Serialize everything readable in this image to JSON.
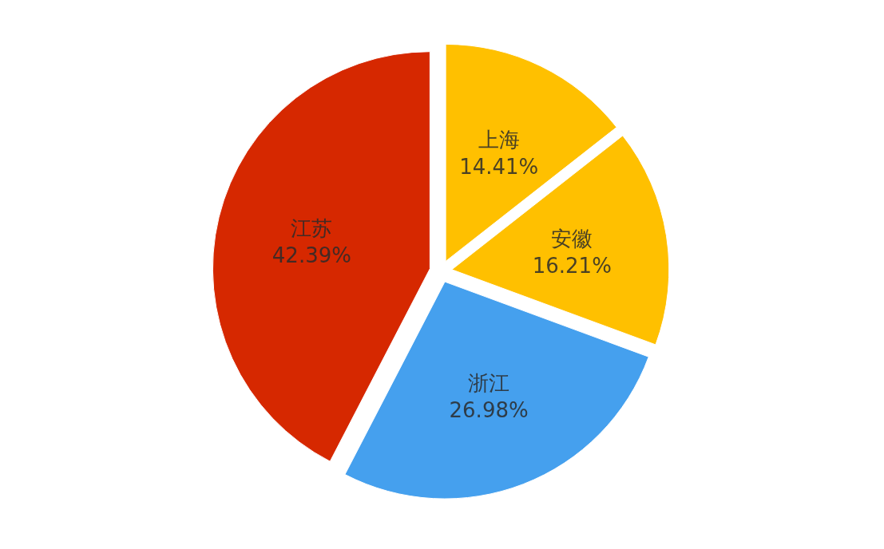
{
  "chart_data": {
    "type": "pie",
    "categories": [
      "上海",
      "安徽",
      "浙江",
      "江苏"
    ],
    "values": [
      14.41,
      16.21,
      26.98,
      42.39
    ],
    "colors": [
      "#ffc000",
      "#ffc000",
      "#45a0ee",
      "#d62800"
    ],
    "value_labels": [
      "14.41%",
      "16.21%",
      "26.98%",
      "42.39%"
    ]
  }
}
